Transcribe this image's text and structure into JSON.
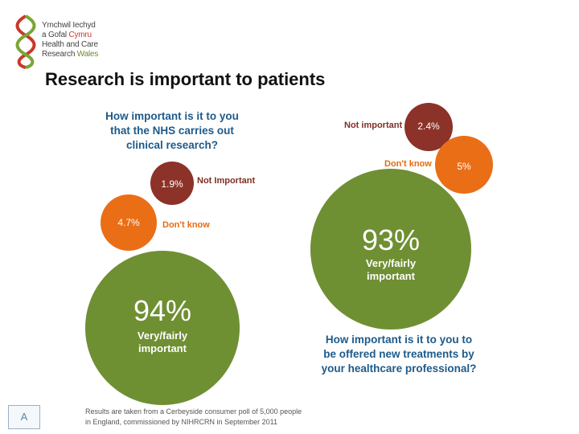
{
  "header": {
    "logo_lines": [
      "Ymchwil Iechyd",
      "a Gofal",
      "Cymru",
      "Health and Care",
      "Research",
      "Wales"
    ],
    "title": "Research is important to patients"
  },
  "colors": {
    "green": "#6f8f33",
    "brown": "#8c3229",
    "orange": "#ea6e16",
    "question_blue": "#1e5a8a"
  },
  "chart_data": [
    {
      "type": "bubble",
      "title": "How important is it to you that the NHS carries out clinical research?",
      "title_lines": [
        "How important is it to you",
        "that the NHS carries out",
        "clinical  research?"
      ],
      "series": [
        {
          "name": "Very/fairly important",
          "value": 94,
          "label": "94%",
          "sub": [
            "Very/fairly",
            "important"
          ],
          "color": "green"
        },
        {
          "name": "Not Important",
          "value": 1.9,
          "label": "1.9%",
          "color": "brown"
        },
        {
          "name": "Don't know",
          "value": 4.7,
          "label": "4.7%",
          "color": "orange"
        }
      ]
    },
    {
      "type": "bubble",
      "title": "How important is it to you to be offered new treatments by your healthcare professional?",
      "title_lines": [
        "How important is it to you to",
        "be offered new treatments by",
        "your healthcare professional?"
      ],
      "series": [
        {
          "name": "Very/fairly important",
          "value": 93,
          "label": "93%",
          "sub": [
            "Very/fairly",
            "important"
          ],
          "color": "green"
        },
        {
          "name": "Not important",
          "value": 2.4,
          "label": "2.4%",
          "color": "brown"
        },
        {
          "name": "Don't know",
          "value": 5,
          "label": "5%",
          "color": "orange"
        }
      ]
    }
  ],
  "source_note": "Results are taken from a Cerbeyside consumer poll of 5,000 people in England, commissioned by NIHRCRN in September 2011",
  "slide_badge": "A"
}
